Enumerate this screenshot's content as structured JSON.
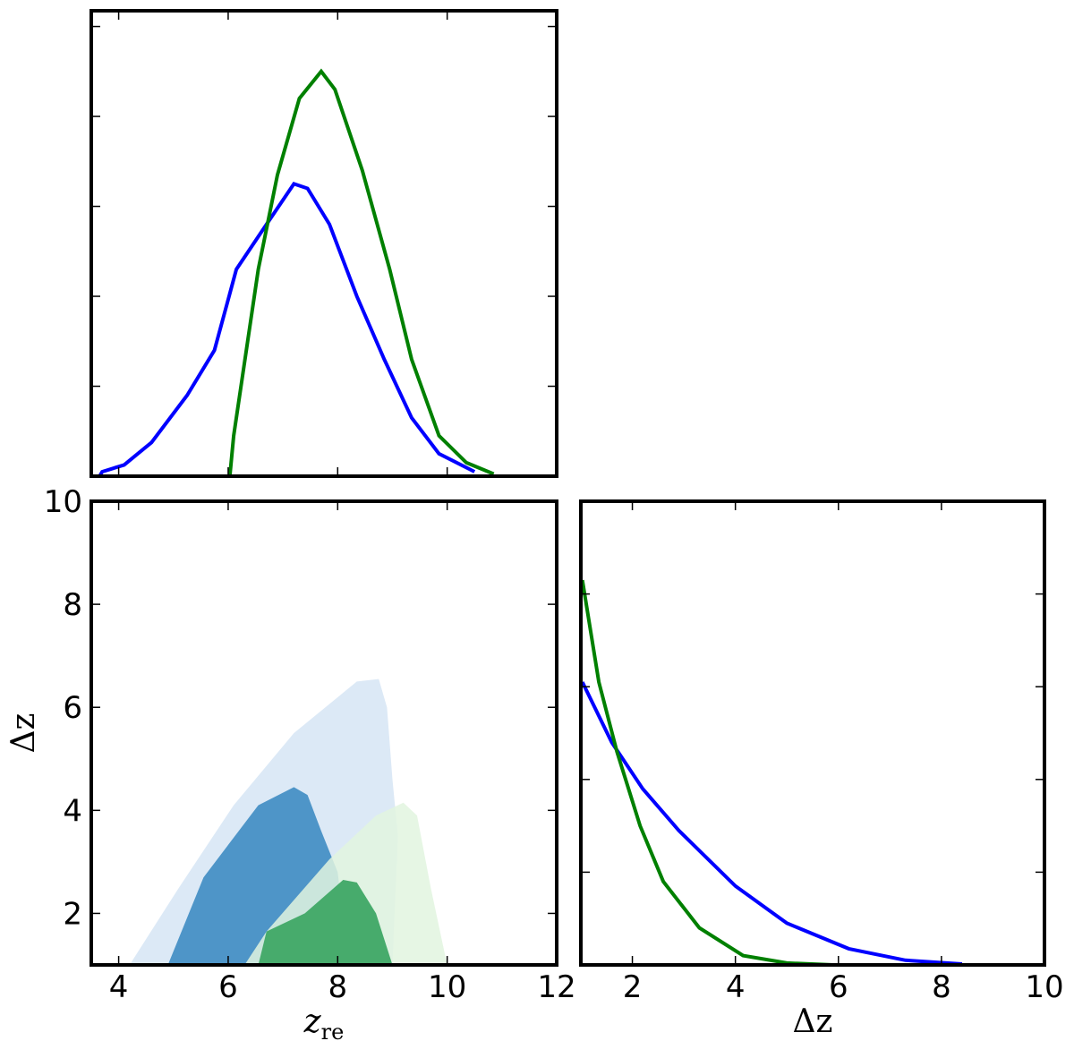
{
  "chart_data": [
    {
      "type": "line",
      "xlim": [
        3.5,
        12
      ],
      "xticks": [
        4,
        6,
        8,
        10,
        12
      ],
      "ylim": [
        0,
        1.035
      ],
      "yticks": [
        0,
        0.2,
        0.4,
        0.6,
        0.8,
        1.0
      ],
      "tick_labels": false,
      "series": [
        {
          "color": "#0000ff",
          "x": [
            3.65,
            3.7,
            4.1,
            4.6,
            5.25,
            5.75,
            6.15,
            6.7,
            7.2,
            7.45,
            7.85,
            8.35,
            8.85,
            9.35,
            9.85,
            10.5
          ],
          "values": [
            0,
            0.01,
            0.025,
            0.075,
            0.18,
            0.28,
            0.46,
            0.56,
            0.65,
            0.64,
            0.56,
            0.4,
            0.26,
            0.13,
            0.05,
            0.01
          ]
        },
        {
          "color": "#008000",
          "x": [
            6.03,
            6.1,
            6.55,
            6.9,
            7.3,
            7.7,
            7.95,
            8.45,
            8.95,
            9.35,
            9.85,
            10.35,
            10.85
          ],
          "values": [
            0,
            0.09,
            0.46,
            0.67,
            0.84,
            0.9,
            0.86,
            0.68,
            0.46,
            0.26,
            0.09,
            0.03,
            0.005
          ]
        }
      ]
    },
    {
      "type": "contour",
      "xlim": [
        3.5,
        12
      ],
      "xticks": [
        4,
        6,
        8,
        10,
        12
      ],
      "ylim": [
        1,
        10
      ],
      "yticks": [
        2,
        4,
        6,
        8,
        10
      ],
      "xlabel": "z",
      "xlabel_sub": "re",
      "ylabel": "Δz",
      "series": [
        {
          "color": "#dce9f6",
          "alpha": 1,
          "x": [
            4.2,
            5.1,
            6.1,
            7.2,
            8.35,
            8.75,
            8.9,
            9.0,
            9.1,
            9.0
          ],
          "values": [
            1,
            2.5,
            4.1,
            5.5,
            6.5,
            6.55,
            6.0,
            4.6,
            3.5,
            1
          ]
        },
        {
          "color": "#4e95c8",
          "alpha": 1,
          "x": [
            4.9,
            5.55,
            6.55,
            7.2,
            7.45,
            7.7,
            8.0,
            8.2
          ],
          "values": [
            1,
            2.7,
            4.1,
            4.45,
            4.3,
            3.6,
            2.8,
            1
          ]
        },
        {
          "color": "#e2f5df",
          "alpha": 0.85,
          "x": [
            6.3,
            6.7,
            7.85,
            8.7,
            9.2,
            9.45,
            9.7,
            10.0
          ],
          "values": [
            1,
            1.65,
            3.05,
            3.9,
            4.15,
            3.9,
            2.5,
            1
          ]
        },
        {
          "color": "#47ab6c",
          "alpha": 1,
          "x": [
            6.55,
            6.7,
            7.4,
            8.1,
            8.35,
            8.7,
            9.0
          ],
          "values": [
            1,
            1.65,
            2.0,
            2.65,
            2.6,
            2.0,
            1
          ]
        }
      ]
    },
    {
      "type": "line",
      "xlim": [
        1,
        10
      ],
      "xticks": [
        2,
        4,
        6,
        8,
        10
      ],
      "ylim": [
        0,
        1
      ],
      "yticks": [
        0,
        0.2,
        0.4,
        0.6,
        0.8,
        1.0
      ],
      "ytick_labels": false,
      "xlabel": "Δz",
      "series": [
        {
          "color": "#0000ff",
          "x": [
            1.03,
            1.6,
            2.2,
            2.9,
            4.0,
            5.0,
            6.2,
            7.3,
            8.4
          ],
          "values": [
            0.61,
            0.48,
            0.38,
            0.29,
            0.17,
            0.09,
            0.035,
            0.01,
            0.002
          ]
        },
        {
          "color": "#008000",
          "x": [
            1.03,
            1.35,
            1.7,
            2.15,
            2.6,
            3.3,
            4.15,
            5.0,
            5.9
          ],
          "values": [
            0.83,
            0.61,
            0.46,
            0.3,
            0.18,
            0.08,
            0.02,
            0.004,
            0
          ]
        }
      ]
    }
  ]
}
